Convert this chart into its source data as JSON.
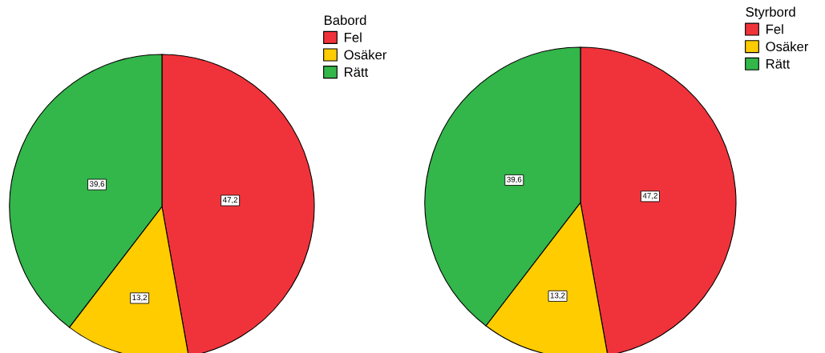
{
  "chart_data": [
    {
      "type": "pie",
      "legend_title": "Babord",
      "categories": [
        "Fel",
        "Osäker",
        "Rätt"
      ],
      "values": [
        47.2,
        13.2,
        39.6
      ],
      "colors": [
        "#f0333a",
        "#ffcc00",
        "#33b64a"
      ],
      "value_labels": [
        "47,2",
        "13,2",
        "39,6"
      ],
      "legend": "top right"
    },
    {
      "type": "pie",
      "legend_title": "Styrbord",
      "categories": [
        "Fel",
        "Osäker",
        "Rätt"
      ],
      "values": [
        47.2,
        13.2,
        39.6
      ],
      "colors": [
        "#f0333a",
        "#ffcc00",
        "#33b64a"
      ],
      "value_labels": [
        "47,2",
        "13,2",
        "39,6"
      ],
      "legend": "top right"
    }
  ]
}
